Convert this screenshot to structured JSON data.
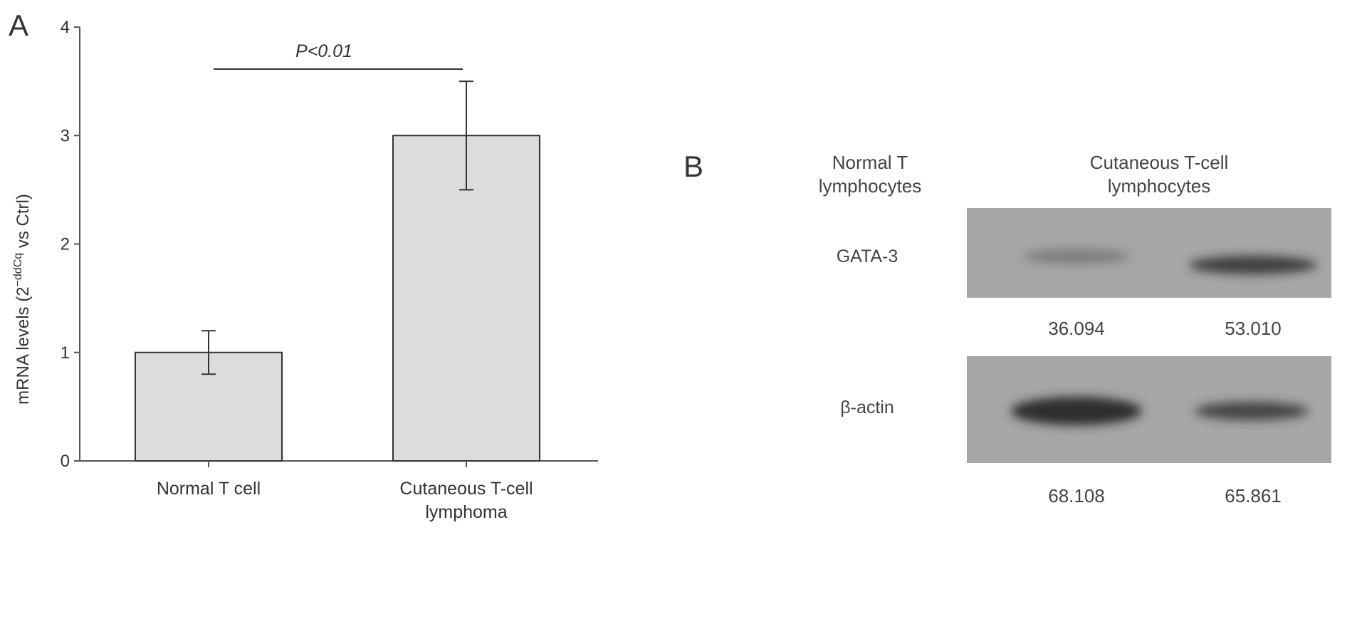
{
  "panel_a": {
    "label": "A",
    "significance": "P<0.01",
    "ylabel_prefix": "mRNA levels (2",
    "ylabel_sup": "−ddCq",
    "ylabel_suffix": " vs Ctrl)"
  },
  "panel_b": {
    "label": "B",
    "columns": [
      {
        "line1": "Normal T",
        "line2": "lymphocytes"
      },
      {
        "line1": "Cutaneous T-cell",
        "line2": "lymphocytes"
      }
    ],
    "blots": [
      {
        "protein": "GATA-3",
        "values": [
          "36.094",
          "53.010"
        ],
        "intensity": [
          0.35,
          0.85
        ]
      },
      {
        "protein": "β-actin",
        "values": [
          "68.108",
          "65.861"
        ],
        "intensity": [
          1.0,
          0.8
        ]
      }
    ],
    "colors": {
      "membrane": "#a6a6a6",
      "band": "#2f2f2f"
    }
  },
  "chart_data": {
    "type": "bar",
    "categories": [
      "Normal T cell",
      "Cutaneous T-cell lymphoma"
    ],
    "category_lines": [
      [
        "Normal T cell"
      ],
      [
        "Cutaneous T-cell",
        "lymphoma"
      ]
    ],
    "values": [
      1.0,
      3.0
    ],
    "errors": [
      0.2,
      0.5
    ],
    "ylim": [
      0,
      4
    ],
    "yticks": [
      0,
      1,
      2,
      3,
      4
    ],
    "grid": false,
    "colors": {
      "bar_fill": "#dcdcdc",
      "bar_stroke": "#333333",
      "axis": "#555555"
    }
  }
}
